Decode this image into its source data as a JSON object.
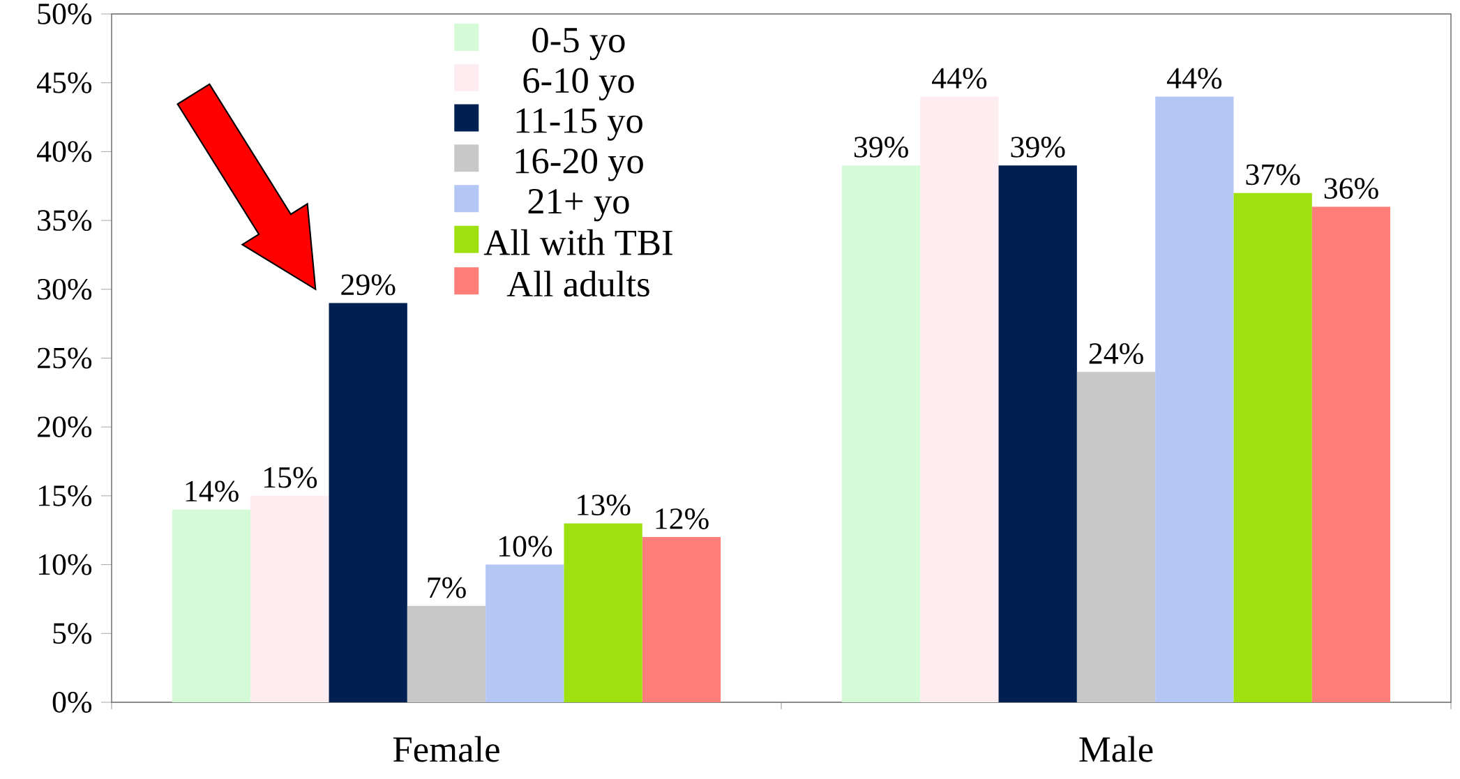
{
  "chart_data": {
    "type": "bar",
    "categories": [
      "Female",
      "Male"
    ],
    "series": [
      {
        "name": "0-5 yo",
        "color": "#d4fad8",
        "values": [
          14,
          39
        ],
        "value_labels": [
          "14%",
          "39%"
        ]
      },
      {
        "name": "6-10 yo",
        "color": "#fdecf0",
        "values": [
          15,
          44
        ],
        "value_labels": [
          "15%",
          "44%"
        ]
      },
      {
        "name": "11-15 yo",
        "color": "#002052",
        "values": [
          29,
          39
        ],
        "value_labels": [
          "29%",
          "39%"
        ]
      },
      {
        "name": "16-20 yo",
        "color": "#c8c8c8",
        "values": [
          7,
          24
        ],
        "value_labels": [
          "7%",
          "24%"
        ]
      },
      {
        "name": "21+ yo",
        "color": "#b4c6f4",
        "values": [
          10,
          44
        ],
        "value_labels": [
          "10%",
          "44%"
        ]
      },
      {
        "name": "All with TBI",
        "color": "#9ee010",
        "values": [
          13,
          37
        ],
        "value_labels": [
          "13%",
          "37%"
        ]
      },
      {
        "name": "All adults",
        "color": "#fe7f7a",
        "values": [
          12,
          36
        ],
        "value_labels": [
          "12%",
          "36%"
        ]
      }
    ],
    "ylim": [
      0,
      50
    ],
    "yticks": [
      {
        "value": 0,
        "label": "0%"
      },
      {
        "value": 5,
        "label": "5%"
      },
      {
        "value": 10,
        "label": "10%"
      },
      {
        "value": 15,
        "label": "15%"
      },
      {
        "value": 20,
        "label": "20%"
      },
      {
        "value": 25,
        "label": "25%"
      },
      {
        "value": 30,
        "label": "30%"
      },
      {
        "value": 35,
        "label": "35%"
      },
      {
        "value": 40,
        "label": "40%"
      },
      {
        "value": 45,
        "label": "45%"
      },
      {
        "value": 50,
        "label": "50%"
      }
    ],
    "legend": "top left",
    "grid": false
  }
}
